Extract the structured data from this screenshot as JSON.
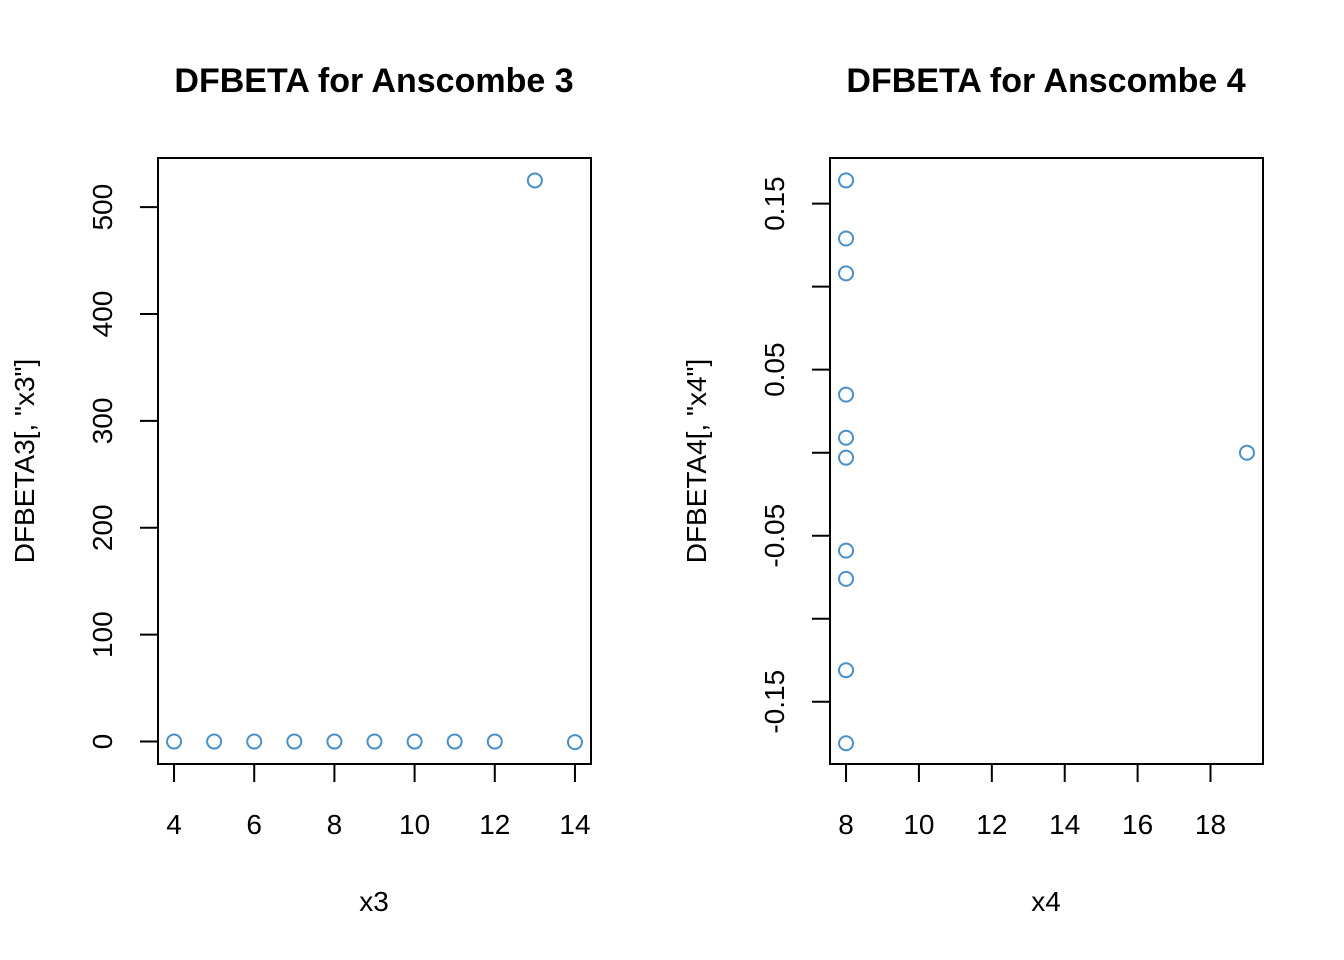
{
  "chart_data": [
    {
      "type": "scatter",
      "title": "DFBETA for Anscombe 3",
      "xlabel": "x3",
      "ylabel": "DFBETA3[, \"x3\"]",
      "xlim": [
        3.6,
        14.4
      ],
      "ylim": [
        -21,
        546
      ],
      "xticks": [
        4,
        6,
        8,
        10,
        12,
        14
      ],
      "yticks": [
        0,
        100,
        200,
        300,
        400,
        500
      ],
      "x": [
        4,
        5,
        6,
        7,
        8,
        9,
        10,
        11,
        12,
        13,
        14
      ],
      "y": [
        0,
        0,
        0,
        0,
        0,
        0,
        0,
        0,
        0,
        525,
        -0.5
      ],
      "point_color": "#4a90c8",
      "grid": false
    },
    {
      "type": "scatter",
      "title": "DFBETA for Anscombe 4",
      "xlabel": "x4",
      "ylabel": "DFBETA4[, \"x4\"]",
      "xlim": [
        7.56,
        19.44
      ],
      "ylim": [
        -0.1875,
        0.1775
      ],
      "xticks": [
        8,
        10,
        12,
        14,
        16,
        18
      ],
      "yticks": [
        -0.15,
        -0.05,
        0.05,
        0.15
      ],
      "yticks_minor": [
        -0.1,
        0.0,
        0.1
      ],
      "x": [
        8,
        8,
        8,
        8,
        8,
        8,
        8,
        8,
        8,
        8,
        19
      ],
      "y": [
        0.164,
        0.129,
        0.108,
        0.035,
        0.009,
        -0.003,
        -0.059,
        -0.076,
        -0.131,
        -0.175,
        0.0
      ],
      "point_color": "#4a90c8",
      "grid": false
    }
  ]
}
